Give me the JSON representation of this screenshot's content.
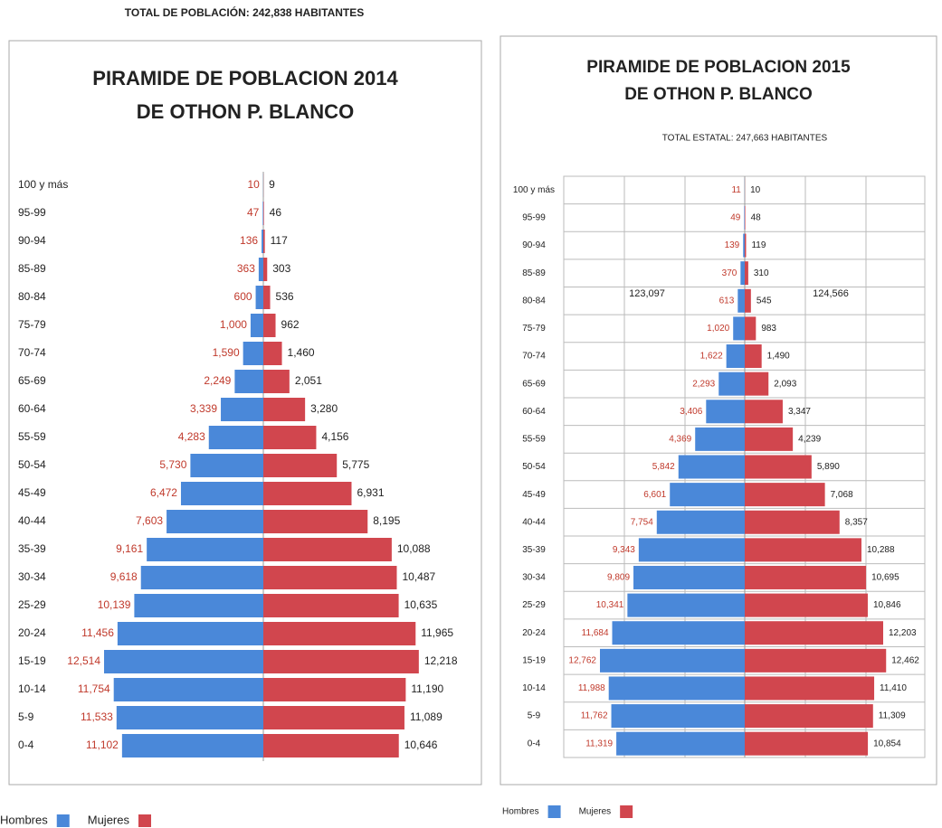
{
  "chart_data": [
    {
      "type": "pyramid",
      "subtitle": "TOTAL DE POBLACIÓN: 242,838 HABITANTES",
      "title": [
        "PIRAMIDE DE POBLACION 2014",
        "DE OTHON P. BLANCO"
      ],
      "categories": [
        "100 y más",
        "95-99",
        "90-94",
        "85-89",
        "80-84",
        "75-79",
        "70-74",
        "65-69",
        "60-64",
        "55-59",
        "50-54",
        "45-49",
        "40-44",
        "35-39",
        "30-34",
        "25-29",
        "20-24",
        "15-19",
        "10-14",
        "5-9",
        "0-4"
      ],
      "series": [
        {
          "name": "Hombres",
          "color": "#4a88d9",
          "label_color": "#c0392b",
          "values": [
            10,
            47,
            136,
            363,
            600,
            1000,
            1590,
            2249,
            3339,
            4283,
            5730,
            6472,
            7603,
            9161,
            9618,
            10139,
            11456,
            12514,
            11754,
            11533,
            11102
          ],
          "value_labels": [
            "10",
            "47",
            "136",
            "363",
            "600",
            "1,000",
            "1,590",
            "2,249",
            "3,339",
            "4,283",
            "5,730",
            "6,472",
            "7,603",
            "9,161",
            "9,618",
            "10,139",
            "11,456",
            "12,514",
            "11,754",
            "11,533",
            "11,102"
          ]
        },
        {
          "name": "Mujeres",
          "color": "#d1464e",
          "label_color": "#222222",
          "values": [
            9,
            46,
            117,
            303,
            536,
            962,
            1460,
            2051,
            3280,
            4156,
            5775,
            6931,
            8195,
            10088,
            10487,
            10635,
            11965,
            12218,
            11190,
            11089,
            10646
          ],
          "value_labels": [
            "9",
            "46",
            "117",
            "303",
            "536",
            "962",
            "1,460",
            "2,051",
            "3,280",
            "4,156",
            "5,775",
            "6,931",
            "8,195",
            "10,088",
            "10,487",
            "10,635",
            "11,965",
            "12,218",
            "11,190",
            "11,089",
            "10,646"
          ]
        }
      ],
      "grid": false
    },
    {
      "type": "pyramid",
      "title": [
        "PIRAMIDE DE POBLACION 2015",
        "DE OTHON P. BLANCO"
      ],
      "subtitle": "TOTAL ESTATAL: 247,663 HABITANTES",
      "annotations": [
        "123,097",
        "124,566"
      ],
      "categories": [
        "100 y más",
        "95-99",
        "90-94",
        "85-89",
        "80-84",
        "75-79",
        "70-74",
        "65-69",
        "60-64",
        "55-59",
        "50-54",
        "45-49",
        "40-44",
        "35-39",
        "30-34",
        "25-29",
        "20-24",
        "15-19",
        "10-14",
        "5-9",
        "0-4"
      ],
      "series": [
        {
          "name": "Hombres",
          "color": "#4a88d9",
          "label_color": "#c0392b",
          "values": [
            11,
            49,
            139,
            370,
            613,
            1020,
            1622,
            2293,
            3406,
            4369,
            5842,
            6601,
            7754,
            9343,
            9809,
            10341,
            11684,
            12762,
            11988,
            11762,
            11319
          ],
          "value_labels": [
            "11",
            "49",
            "139",
            "370",
            "613",
            "1,020",
            "1,622",
            "2,293",
            "3,406",
            "4,369",
            "5,842",
            "6,601",
            "7,754",
            "9,343",
            "9,809",
            "10,341",
            "11,684",
            "12,762",
            "11,988",
            "11,762",
            "11,319"
          ]
        },
        {
          "name": "Mujeres",
          "color": "#d1464e",
          "label_color": "#222222",
          "values": [
            10,
            48,
            119,
            310,
            545,
            983,
            1490,
            2093,
            3347,
            4239,
            5890,
            7068,
            8357,
            10288,
            10695,
            10846,
            12203,
            12462,
            11410,
            11309,
            10854
          ],
          "value_labels": [
            "10",
            "48",
            "119",
            "310",
            "545",
            "983",
            "1,490",
            "2,093",
            "3,347",
            "4,239",
            "5,890",
            "7,068",
            "8,357",
            "10,288",
            "10,695",
            "10,846",
            "12,203",
            "12,462",
            "11,410",
            "11,309",
            "10,854"
          ]
        }
      ],
      "grid": true
    }
  ]
}
